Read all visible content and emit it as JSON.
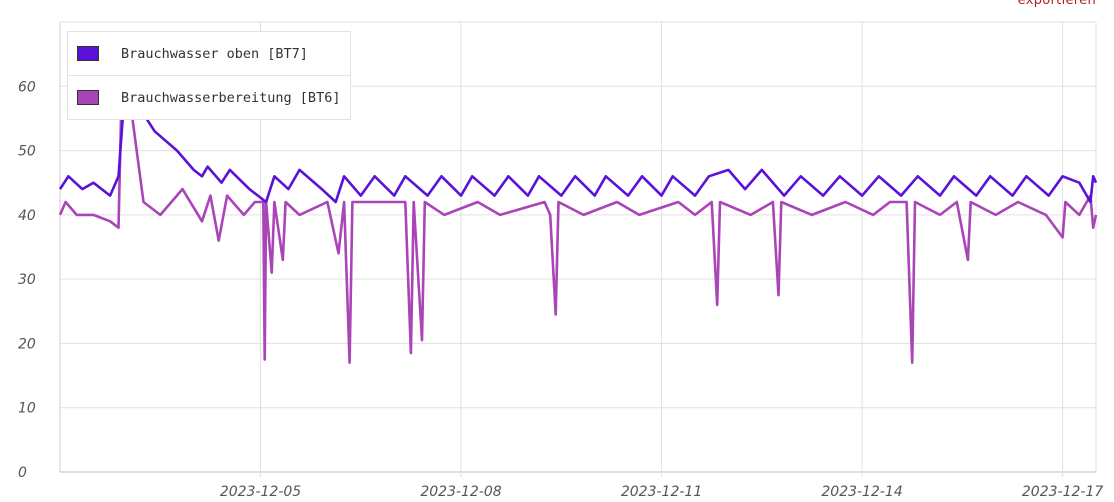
{
  "export_label": "exportieren",
  "chart_data": {
    "type": "line",
    "ylim": [
      0,
      70
    ],
    "yticks": [
      0,
      10,
      20,
      30,
      40,
      50,
      60
    ],
    "xlim": [
      "2023-12-02T00:00",
      "2023-12-17T12:00"
    ],
    "xticks": [
      "2023-12-05",
      "2023-12-08",
      "2023-12-11",
      "2023-12-14",
      "2023-12-17"
    ],
    "grid": true,
    "legend_position": "top-left",
    "series": [
      {
        "name": "Brauchwasser oben [BT7]",
        "color": "#5a12d8",
        "points": [
          [
            "2023-12-02T00:00",
            44
          ],
          [
            "2023-12-02T03:00",
            46
          ],
          [
            "2023-12-02T08:00",
            44
          ],
          [
            "2023-12-02T12:00",
            45
          ],
          [
            "2023-12-02T18:00",
            43
          ],
          [
            "2023-12-02T21:00",
            46
          ],
          [
            "2023-12-02T22:30",
            55
          ],
          [
            "2023-12-03T00:00",
            58
          ],
          [
            "2023-12-03T04:00",
            57
          ],
          [
            "2023-12-03T10:00",
            53
          ],
          [
            "2023-12-03T18:00",
            50
          ],
          [
            "2023-12-04T00:00",
            47
          ],
          [
            "2023-12-04T03:00",
            46
          ],
          [
            "2023-12-04T05:00",
            47.5
          ],
          [
            "2023-12-04T10:00",
            45
          ],
          [
            "2023-12-04T13:00",
            47
          ],
          [
            "2023-12-04T20:00",
            44
          ],
          [
            "2023-12-05T02:00",
            42
          ],
          [
            "2023-12-05T05:00",
            46
          ],
          [
            "2023-12-05T10:00",
            44
          ],
          [
            "2023-12-05T14:00",
            47
          ],
          [
            "2023-12-05T22:00",
            44
          ],
          [
            "2023-12-06T03:00",
            42
          ],
          [
            "2023-12-06T06:00",
            46
          ],
          [
            "2023-12-06T12:00",
            43
          ],
          [
            "2023-12-06T17:00",
            46
          ],
          [
            "2023-12-07T00:00",
            43
          ],
          [
            "2023-12-07T04:00",
            46
          ],
          [
            "2023-12-07T12:00",
            43
          ],
          [
            "2023-12-07T17:00",
            46
          ],
          [
            "2023-12-08T00:00",
            43
          ],
          [
            "2023-12-08T04:00",
            46
          ],
          [
            "2023-12-08T12:00",
            43
          ],
          [
            "2023-12-08T17:00",
            46
          ],
          [
            "2023-12-09T00:00",
            43
          ],
          [
            "2023-12-09T04:00",
            46
          ],
          [
            "2023-12-09T12:00",
            43
          ],
          [
            "2023-12-09T17:00",
            46
          ],
          [
            "2023-12-10T00:00",
            43
          ],
          [
            "2023-12-10T04:00",
            46
          ],
          [
            "2023-12-10T12:00",
            43
          ],
          [
            "2023-12-10T17:00",
            46
          ],
          [
            "2023-12-11T00:00",
            43
          ],
          [
            "2023-12-11T04:00",
            46
          ],
          [
            "2023-12-11T12:00",
            43
          ],
          [
            "2023-12-11T17:00",
            46
          ],
          [
            "2023-12-12T00:00",
            47
          ],
          [
            "2023-12-12T06:00",
            44
          ],
          [
            "2023-12-12T12:00",
            47
          ],
          [
            "2023-12-12T20:00",
            43
          ],
          [
            "2023-12-13T02:00",
            46
          ],
          [
            "2023-12-13T10:00",
            43
          ],
          [
            "2023-12-13T16:00",
            46
          ],
          [
            "2023-12-14T00:00",
            43
          ],
          [
            "2023-12-14T06:00",
            46
          ],
          [
            "2023-12-14T14:00",
            43
          ],
          [
            "2023-12-14T20:00",
            46
          ],
          [
            "2023-12-15T04:00",
            43
          ],
          [
            "2023-12-15T09:00",
            46
          ],
          [
            "2023-12-15T17:00",
            43
          ],
          [
            "2023-12-15T22:00",
            46
          ],
          [
            "2023-12-16T06:00",
            43
          ],
          [
            "2023-12-16T11:00",
            46
          ],
          [
            "2023-12-16T19:00",
            43
          ],
          [
            "2023-12-17T00:00",
            46
          ],
          [
            "2023-12-17T06:00",
            45
          ],
          [
            "2023-12-17T10:00",
            42
          ],
          [
            "2023-12-17T11:00",
            46
          ],
          [
            "2023-12-17T12:00",
            45
          ]
        ]
      },
      {
        "name": "Brauchwasserbereitung [BT6]",
        "color": "#a945b6",
        "points": [
          [
            "2023-12-02T00:00",
            40
          ],
          [
            "2023-12-02T02:00",
            42
          ],
          [
            "2023-12-02T06:00",
            40
          ],
          [
            "2023-12-02T12:00",
            40
          ],
          [
            "2023-12-02T18:00",
            39
          ],
          [
            "2023-12-02T21:00",
            38
          ],
          [
            "2023-12-02T22:00",
            57
          ],
          [
            "2023-12-03T02:00",
            55
          ],
          [
            "2023-12-03T06:00",
            42
          ],
          [
            "2023-12-03T12:00",
            40
          ],
          [
            "2023-12-03T20:00",
            44
          ],
          [
            "2023-12-04T03:00",
            39
          ],
          [
            "2023-12-04T06:00",
            43
          ],
          [
            "2023-12-04T09:00",
            36
          ],
          [
            "2023-12-04T12:00",
            43
          ],
          [
            "2023-12-04T18:00",
            40
          ],
          [
            "2023-12-04T22:00",
            42
          ],
          [
            "2023-12-05T01:00",
            42
          ],
          [
            "2023-12-05T01:30",
            17.5
          ],
          [
            "2023-12-05T02:00",
            42
          ],
          [
            "2023-12-05T04:00",
            31
          ],
          [
            "2023-12-05T05:00",
            42
          ],
          [
            "2023-12-05T08:00",
            33
          ],
          [
            "2023-12-05T09:00",
            42
          ],
          [
            "2023-12-05T14:00",
            40
          ],
          [
            "2023-12-06T00:00",
            42
          ],
          [
            "2023-12-06T04:00",
            34
          ],
          [
            "2023-12-06T06:00",
            42
          ],
          [
            "2023-12-06T08:00",
            17
          ],
          [
            "2023-12-06T09:00",
            42
          ],
          [
            "2023-12-06T18:00",
            42
          ],
          [
            "2023-12-07T04:00",
            42
          ],
          [
            "2023-12-07T06:00",
            18.5
          ],
          [
            "2023-12-07T07:00",
            42
          ],
          [
            "2023-12-07T10:00",
            20.5
          ],
          [
            "2023-12-07T11:00",
            42
          ],
          [
            "2023-12-07T18:00",
            40
          ],
          [
            "2023-12-08T06:00",
            42
          ],
          [
            "2023-12-08T14:00",
            40
          ],
          [
            "2023-12-09T06:00",
            42
          ],
          [
            "2023-12-09T08:00",
            40
          ],
          [
            "2023-12-09T10:00",
            24.5
          ],
          [
            "2023-12-09T11:00",
            42
          ],
          [
            "2023-12-09T20:00",
            40
          ],
          [
            "2023-12-10T08:00",
            42
          ],
          [
            "2023-12-10T16:00",
            40
          ],
          [
            "2023-12-11T06:00",
            42
          ],
          [
            "2023-12-11T12:00",
            40
          ],
          [
            "2023-12-11T18:00",
            42
          ],
          [
            "2023-12-11T20:00",
            26
          ],
          [
            "2023-12-11T21:00",
            42
          ],
          [
            "2023-12-12T08:00",
            40
          ],
          [
            "2023-12-12T16:00",
            42
          ],
          [
            "2023-12-12T18:00",
            27.5
          ],
          [
            "2023-12-12T19:00",
            42
          ],
          [
            "2023-12-13T06:00",
            40
          ],
          [
            "2023-12-13T18:00",
            42
          ],
          [
            "2023-12-14T04:00",
            40
          ],
          [
            "2023-12-14T10:00",
            42
          ],
          [
            "2023-12-14T16:00",
            42
          ],
          [
            "2023-12-14T18:00",
            17
          ],
          [
            "2023-12-14T19:00",
            42
          ],
          [
            "2023-12-15T04:00",
            40
          ],
          [
            "2023-12-15T10:00",
            42
          ],
          [
            "2023-12-15T14:00",
            33
          ],
          [
            "2023-12-15T15:00",
            42
          ],
          [
            "2023-12-16T00:00",
            40
          ],
          [
            "2023-12-16T08:00",
            42
          ],
          [
            "2023-12-16T18:00",
            40
          ],
          [
            "2023-12-17T00:00",
            36.5
          ],
          [
            "2023-12-17T01:00",
            42
          ],
          [
            "2023-12-17T06:00",
            40
          ],
          [
            "2023-12-17T10:00",
            43
          ],
          [
            "2023-12-17T11:00",
            38
          ],
          [
            "2023-12-17T12:00",
            40
          ]
        ]
      }
    ]
  }
}
